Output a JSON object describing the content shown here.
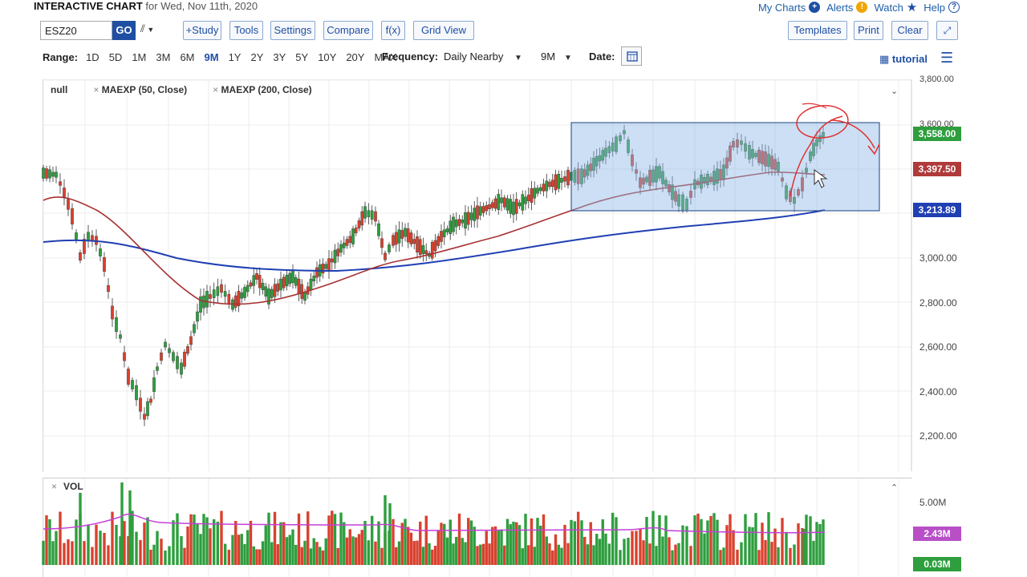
{
  "header": {
    "title": "INTERACTIVE CHART",
    "subtitle": "for Wed, Nov 11th, 2020"
  },
  "toplinks": [
    {
      "label": "My Charts",
      "icon": "plus-icon",
      "color": "#1f4fa3"
    },
    {
      "label": "Alerts",
      "icon": "alert-icon",
      "color": "#f0a500"
    },
    {
      "label": "Watch",
      "icon": "star-icon",
      "color": "#1f4fa3"
    },
    {
      "label": "Help",
      "icon": "help-icon",
      "color": "#1f4fa3"
    }
  ],
  "toolbar": {
    "symbol": "ESZ20",
    "go": "GO",
    "study": "+Study",
    "tools": "Tools",
    "settings": "Settings",
    "compare": "Compare",
    "fx": "f(x)",
    "grid_view": "Grid View",
    "templates": "Templates",
    "print": "Print",
    "clear": "Clear"
  },
  "range": {
    "label": "Range:",
    "options": [
      "1D",
      "5D",
      "1M",
      "3M",
      "6M",
      "9M",
      "1Y",
      "2Y",
      "3Y",
      "5Y",
      "10Y",
      "20Y",
      "MAX"
    ],
    "active": "9M"
  },
  "frequency": {
    "label": "Frequency:",
    "value": "Daily Nearby"
  },
  "period": "9M",
  "date_label": "Date:",
  "tutorial": "tutorial",
  "legend": {
    "main": "null",
    "ma50": "MAEXP (50, Close)",
    "ma200": "MAEXP (200, Close)"
  },
  "price_axis": [
    "3,800.00",
    "3,600.00",
    "3,000.00",
    "2,800.00",
    "2,600.00",
    "2,400.00",
    "2,200.00"
  ],
  "price_tags": [
    {
      "value": "3,558.00",
      "color": "#2e9e3e"
    },
    {
      "value": "3,397.50",
      "color": "#b03a3a"
    },
    {
      "value": "3,213.89",
      "color": "#1f3fb3"
    }
  ],
  "volume": {
    "label": "VOL",
    "axis": [
      "5.00M"
    ],
    "tags": [
      {
        "value": "2.43M",
        "color": "#b84fc7"
      },
      {
        "value": "0.03M",
        "color": "#2e9e3e"
      }
    ]
  },
  "colors": {
    "up": "#2e9e3e",
    "down": "#d9412e",
    "ma50": "#a83232",
    "ma200": "#1f3fb3",
    "box": "#8fb8e6",
    "annot": "#e03030",
    "volma": "#c43fd6"
  }
}
